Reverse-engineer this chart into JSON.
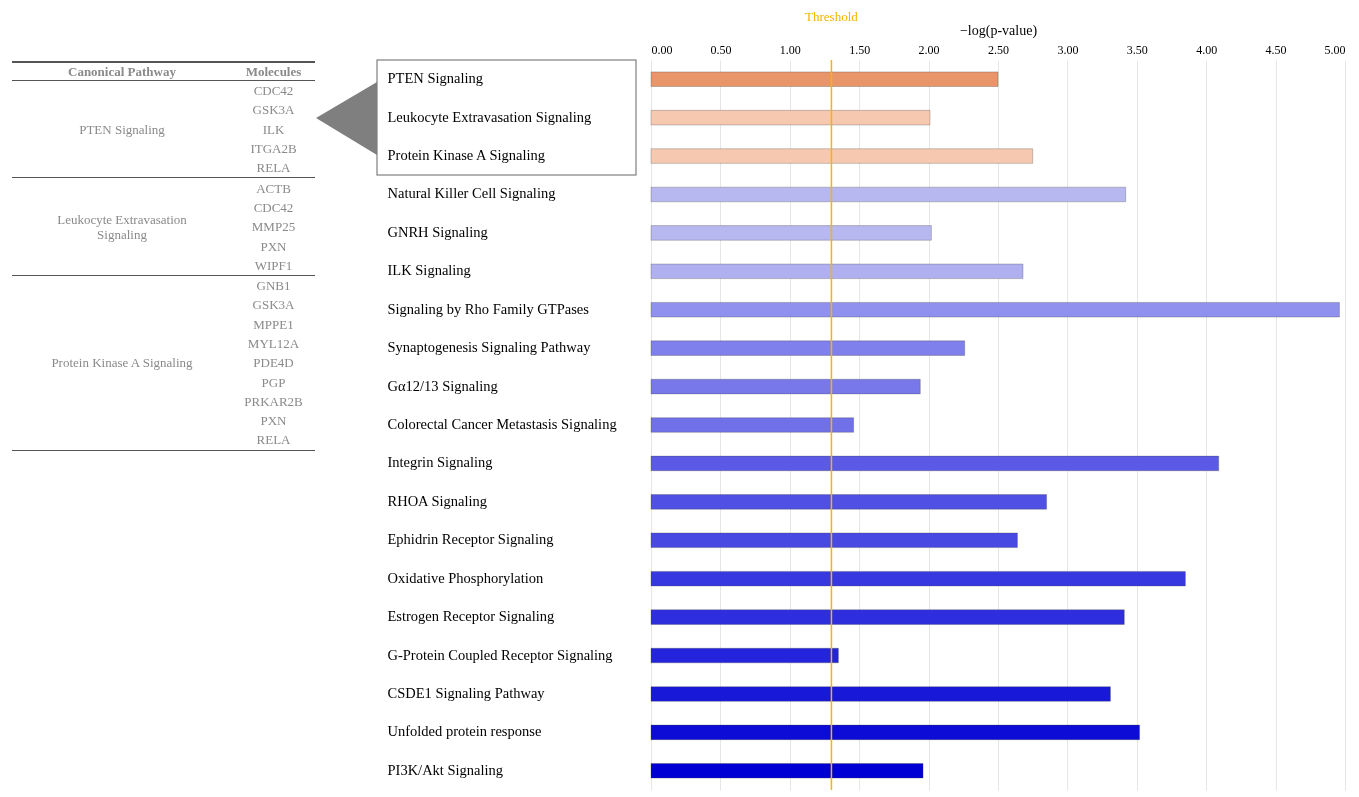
{
  "chart_data": [
    {
      "type": "other",
      "categories": [
        "Canonical Pathway",
        "Molecules"
      ],
      "cell_labels": [
        [
          "PTEN Signaling",
          "CDC42"
        ],
        [
          null,
          "GSK3A"
        ],
        [
          null,
          "ILK"
        ],
        [
          null,
          "ITGA2B"
        ],
        [
          null,
          "RELA"
        ],
        [
          "Leukocyte Extravasation Signaling",
          "ACTB"
        ],
        [
          null,
          "CDC42"
        ],
        [
          null,
          "MMP25"
        ],
        [
          null,
          "PXN"
        ],
        [
          null,
          "WIPF1"
        ],
        [
          "Protein Kinase A Signaling",
          "GNB1"
        ],
        [
          null,
          "GSK3A"
        ],
        [
          null,
          "MPPE1"
        ],
        [
          null,
          "MYL12A"
        ],
        [
          null,
          "PDE4D"
        ],
        [
          null,
          "PGP"
        ],
        [
          null,
          "PRKAR2B"
        ],
        [
          null,
          "PXN"
        ],
        [
          null,
          "RELA"
        ]
      ]
    },
    {
      "type": "bar",
      "orientation": "horizontal",
      "xlabel": "−log(p-value)",
      "grid": "x",
      "categories": [
        "PTEN Signaling",
        "Leukocyte Extravasation Signaling",
        "Protein Kinase A Signaling",
        "Natural Killer Cell Signaling",
        "GNRH Signaling",
        "ILK Signaling",
        "Signaling by Rho Family GTPases",
        "Synaptogenesis Signaling Pathway",
        "Gα12/13 Signaling",
        "Colorectal Cancer Metastasis Signaling",
        "Integrin Signaling",
        "RHOA Signaling",
        "Ephidrin Receptor Signaling",
        "Oxidative Phosphorylation",
        "Estrogen Receptor Signaling",
        "G-Protein Coupled Receptor Signaling",
        "CSDE1 Signaling Pathway",
        "Unfolded protein response",
        "PI3K/Akt Signaling"
      ],
      "values": [
        2.5,
        2.01,
        2.75,
        3.42,
        2.02,
        2.68,
        4.96,
        2.26,
        1.94,
        1.46,
        4.09,
        2.85,
        2.64,
        3.85,
        3.41,
        1.35,
        3.31,
        3.52,
        1.96
      ],
      "colors": [
        "#e8956a",
        "#f7c8b0",
        "#f7c8b0",
        "#b8b8f0",
        "#b8b8f0",
        "#b0b0f0",
        "#9090ee",
        "#8080ec",
        "#7878ea",
        "#7070e8",
        "#5a5ae6",
        "#5050e4",
        "#4848e2",
        "#3838e0",
        "#2e2ede",
        "#2424dc",
        "#1818d8",
        "#0c0cd6",
        "#0000d4"
      ],
      "xlim": [
        0,
        5
      ],
      "xticks": [
        {
          "value": 0,
          "label": "0.00"
        },
        {
          "value": 0.5,
          "label": "0.50"
        },
        {
          "value": 1,
          "label": "1.00"
        },
        {
          "value": 1.5,
          "label": "1.50"
        },
        {
          "value": 2,
          "label": "2.00"
        },
        {
          "value": 2.5,
          "label": "2.50"
        },
        {
          "value": 3,
          "label": "3.00"
        },
        {
          "value": 3.5,
          "label": "3.50"
        },
        {
          "value": 4,
          "label": "4.00"
        },
        {
          "value": 4.5,
          "label": "4.50"
        },
        {
          "value": 5,
          "label": "5.00"
        }
      ],
      "ref_lines": [
        {
          "axis": "x",
          "value": 1.3,
          "label": "Threshold",
          "color": "#f5b400"
        }
      ]
    }
  ]
}
